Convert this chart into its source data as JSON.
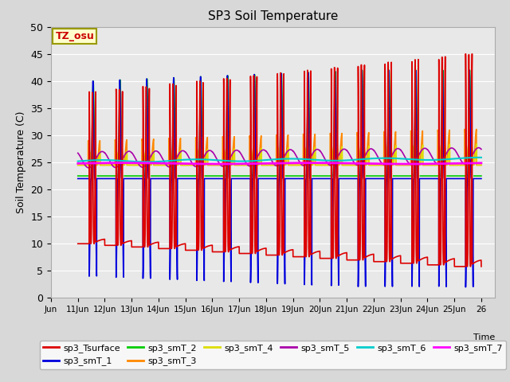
{
  "title": "SP3 Soil Temperature",
  "xlabel": "Time",
  "ylabel": "Soil Temperature (C)",
  "ylim": [
    0,
    50
  ],
  "tz_label": "TZ_osu",
  "xtick_labels": [
    "Jun",
    "11Jun",
    "12Jun",
    "13Jun",
    "14Jun",
    "15Jun",
    "16Jun",
    "17Jun",
    "18Jun",
    "19Jun",
    "20Jun",
    "21Jun",
    "22Jun",
    "23Jun",
    "24Jun",
    "25Jun",
    "26"
  ],
  "bg_color": "#d8d8d8",
  "plot_bg_color": "#e8e8e8",
  "grid_color": "#ffffff",
  "series": {
    "sp3_Tsurface": {
      "color": "#dd0000",
      "lw": 1.2
    },
    "sp3_smT_1": {
      "color": "#0000dd",
      "lw": 1.2
    },
    "sp3_smT_2": {
      "color": "#00cc00",
      "lw": 1.2
    },
    "sp3_smT_3": {
      "color": "#ff8800",
      "lw": 1.2
    },
    "sp3_smT_4": {
      "color": "#dddd00",
      "lw": 1.2
    },
    "sp3_smT_5": {
      "color": "#aa00aa",
      "lw": 1.2
    },
    "sp3_smT_6": {
      "color": "#00cccc",
      "lw": 1.5
    },
    "sp3_smT_7": {
      "color": "#ff00ff",
      "lw": 2.0
    }
  }
}
